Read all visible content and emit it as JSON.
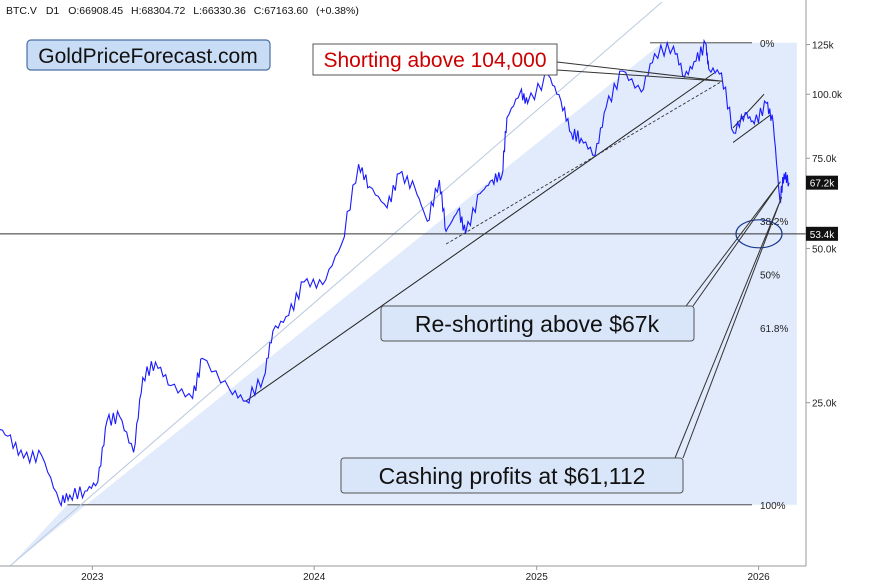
{
  "header": {
    "symbol": "BTC.V",
    "interval": "D1",
    "open": "O:66908.45",
    "high": "H:68304.72",
    "low": "L:66330.36",
    "close": "C:67163.60",
    "change": "(+0.38%)"
  },
  "brand": "GoldPriceForecast.com",
  "annotations": {
    "shorting": "Shorting above 104,000",
    "reshorting": "Re-shorting above $67k",
    "cashing": "Cashing profits at $61,112"
  },
  "colors": {
    "price_line": "#1a1aff",
    "triangle_fill": "#dce8fb",
    "callout_fill": "#d9e5f8",
    "shorting_text": "#cc0000",
    "badge_fill": "#111111"
  },
  "chart_data": {
    "type": "line",
    "series": [
      {
        "x": [
          "2022-07-20",
          "2022-08-15",
          "2022-09-10",
          "2022-10-10",
          "2022-11-08",
          "2022-11-25",
          "2022-12-20",
          "2023-01-10",
          "2023-01-25",
          "2023-02-15",
          "2023-03-10",
          "2023-03-25",
          "2023-04-15",
          "2023-05-10",
          "2023-06-15",
          "2023-07-01",
          "2023-08-15",
          "2023-09-11",
          "2023-10-10",
          "2023-10-25",
          "2023-11-20",
          "2023-12-15",
          "2024-01-15",
          "2024-02-15",
          "2024-03-14",
          "2024-04-01",
          "2024-04-30",
          "2024-05-20",
          "2024-06-15",
          "2024-07-05",
          "2024-07-25",
          "2024-08-05",
          "2024-08-25",
          "2024-09-06",
          "2024-09-30",
          "2024-10-20",
          "2024-11-05",
          "2024-11-13",
          "2024-12-05",
          "2024-12-17",
          "2025-01-20",
          "2025-02-10",
          "2025-02-27",
          "2025-03-15",
          "2025-04-07",
          "2025-04-25",
          "2025-05-22",
          "2025-06-22",
          "2025-07-14",
          "2025-08-14",
          "2025-09-01",
          "2025-09-20",
          "2025-10-06",
          "2025-10-11",
          "2025-11-01",
          "2025-11-21",
          "2025-12-10",
          "2025-12-25",
          "2026-01-14",
          "2026-01-25",
          "2026-02-05",
          "2026-02-12",
          "2026-02-20"
        ],
        "y": [
          23000,
          21500,
          19500,
          19700,
          16000,
          16500,
          16800,
          17500,
          23000,
          23500,
          20000,
          28000,
          30000,
          27000,
          25500,
          30500,
          26500,
          25200,
          28000,
          34500,
          37000,
          43000,
          42500,
          51000,
          73000,
          66000,
          60000,
          70000,
          65500,
          56500,
          68000,
          54000,
          59500,
          53500,
          64000,
          68000,
          69500,
          90000,
          101000,
          96000,
          109000,
          97000,
          84000,
          82000,
          76000,
          94000,
          111000,
          101000,
          120000,
          124000,
          108000,
          116000,
          125500,
          112000,
          110000,
          84000,
          92000,
          87500,
          96000,
          88000,
          62000,
          70000,
          67163
        ]
      }
    ],
    "xlabel": "",
    "ylabel": "",
    "x_tick_labels": [
      "2023",
      "2024",
      "2025",
      "2026"
    ],
    "y_tick_labels": [
      {
        "value": 125000,
        "label": "125k"
      },
      {
        "value": 100000,
        "label": "100.0k"
      },
      {
        "value": 75000,
        "label": "75.0k"
      },
      {
        "value": 50000,
        "label": "50.0k"
      },
      {
        "value": 25000,
        "label": "25.0k"
      }
    ],
    "scale": "log",
    "ylim": [
      12000,
      150000
    ],
    "xlim": [
      "2022-07-20",
      "2026-03-20"
    ],
    "fib_levels": [
      {
        "pct": "0%",
        "value": 126000
      },
      {
        "pct": "38.2%",
        "value": 56600
      },
      {
        "pct": "50%",
        "value": 44500
      },
      {
        "pct": "61.8%",
        "value": 35000
      },
      {
        "pct": "100%",
        "value": 15800
      }
    ],
    "price_badges": [
      {
        "label": "67.2k",
        "value": 67200
      },
      {
        "label": "53.4k",
        "value": 53400
      }
    ],
    "horizontal_line": 53400,
    "grid": false,
    "legend": "none"
  }
}
